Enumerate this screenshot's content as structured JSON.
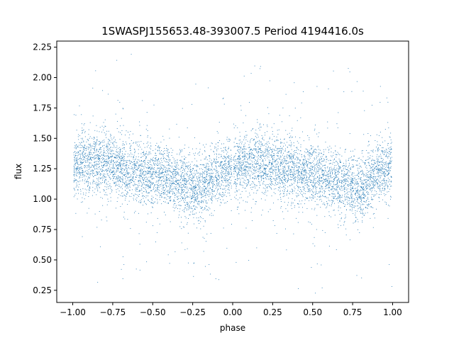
{
  "chart_data": {
    "type": "scatter",
    "title": "1SWASPJ155653.48-393007.5 Period 4194416.0s",
    "xlabel": "phase",
    "ylabel": "flux",
    "xlim": [
      -1.1,
      1.1
    ],
    "ylim": [
      0.15,
      2.3
    ],
    "x_ticks": [
      -1.0,
      -0.75,
      -0.5,
      -0.25,
      0.0,
      0.25,
      0.5,
      0.75,
      1.0
    ],
    "x_tick_labels": [
      "−1.00",
      "−0.75",
      "−0.50",
      "−0.25",
      "0.00",
      "0.25",
      "0.50",
      "0.75",
      "1.00"
    ],
    "y_ticks": [
      0.25,
      0.5,
      0.75,
      1.0,
      1.25,
      1.5,
      1.75,
      2.0,
      2.25
    ],
    "y_tick_labels": [
      "0.25",
      "0.50",
      "0.75",
      "1.00",
      "1.25",
      "1.50",
      "1.75",
      "2.00",
      "2.25"
    ],
    "grid": false,
    "marker_color": "#1f77b4",
    "profile": [
      {
        "phase": 0.0,
        "flux": 1.27
      },
      {
        "phase": 0.1,
        "flux": 1.3
      },
      {
        "phase": 0.2,
        "flux": 1.3
      },
      {
        "phase": 0.3,
        "flux": 1.26
      },
      {
        "phase": 0.4,
        "flux": 1.22
      },
      {
        "phase": 0.5,
        "flux": 1.2
      },
      {
        "phase": 0.6,
        "flux": 1.18
      },
      {
        "phase": 0.7,
        "flux": 1.12
      },
      {
        "phase": 0.8,
        "flux": 1.06
      },
      {
        "phase": 0.9,
        "flux": 1.22
      },
      {
        "phase": 1.0,
        "flux": 1.27
      }
    ],
    "observed_phases": [
      0.02,
      0.05,
      0.08,
      0.11,
      0.14,
      0.17,
      0.2,
      0.23,
      0.26,
      0.29,
      0.32,
      0.35,
      0.38,
      0.41,
      0.44,
      0.47,
      0.5,
      0.53,
      0.56,
      0.59,
      0.62,
      0.65,
      0.68,
      0.71,
      0.74,
      0.77,
      0.8,
      0.83,
      0.86,
      0.89,
      0.92,
      0.95,
      0.98
    ],
    "point_count": 7000,
    "series": [
      {
        "name": "",
        "values_phase_range": [
          -1.0,
          1.0
        ]
      }
    ]
  }
}
